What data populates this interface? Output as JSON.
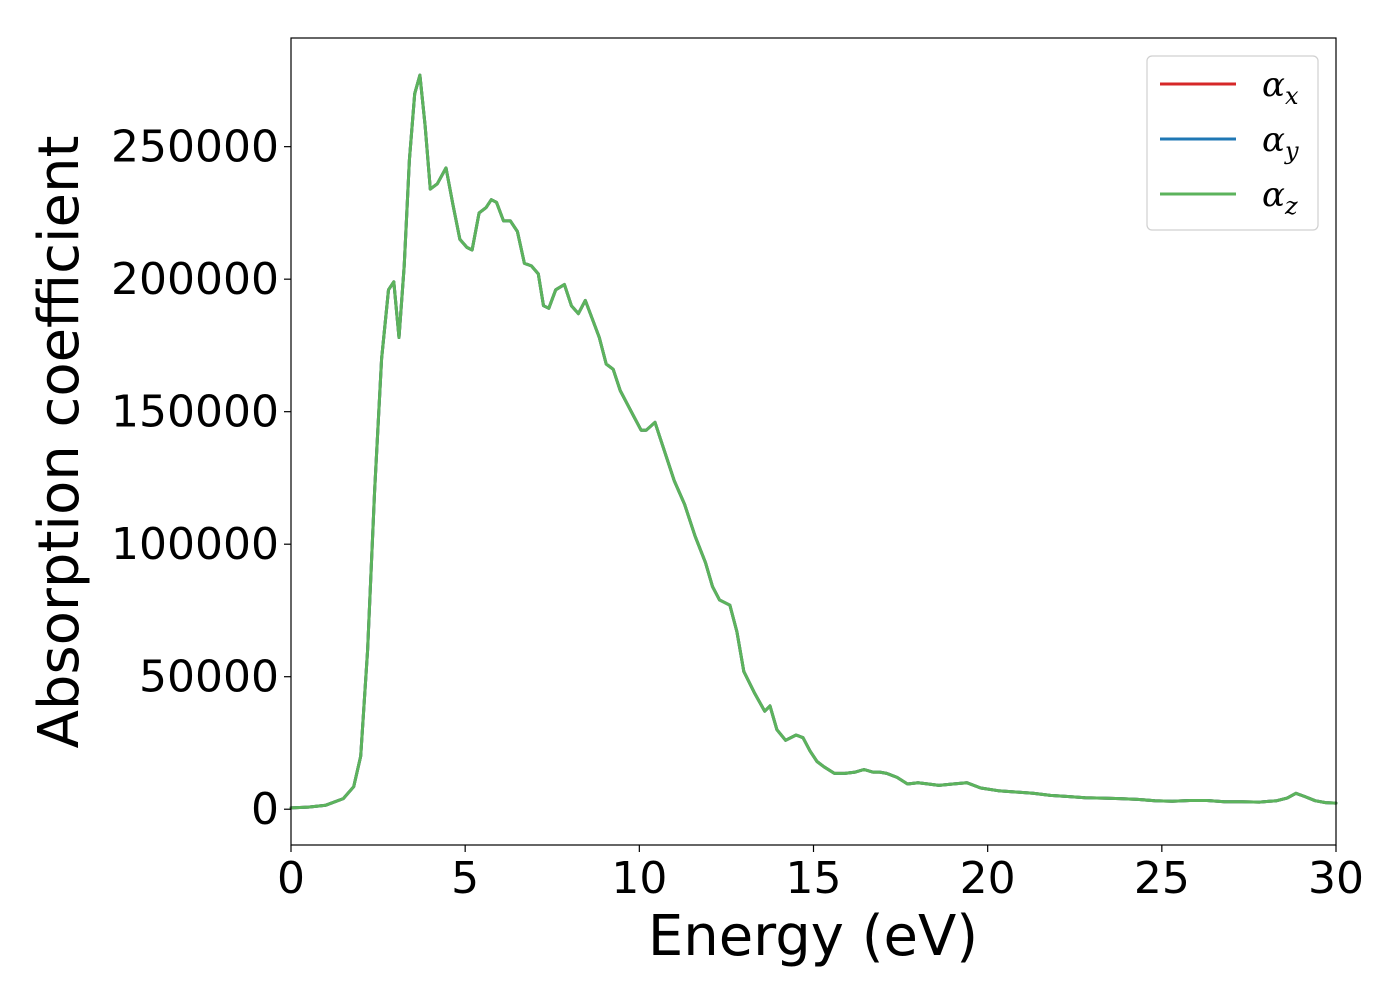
{
  "chart_data": {
    "type": "line",
    "title": "",
    "xlabel": "Energy (eV)",
    "ylabel": "Absorption coefficient",
    "xlim": [
      0,
      30
    ],
    "ylim": [
      -13500,
      291000
    ],
    "xticks": [
      0,
      5,
      10,
      15,
      20,
      25,
      30
    ],
    "yticks": [
      0,
      50000,
      100000,
      150000,
      200000,
      250000
    ],
    "grid": false,
    "legend_position": "top-right",
    "x": [
      0,
      0.5,
      1,
      1.5,
      1.8,
      2,
      2.2,
      2.4,
      2.6,
      2.8,
      2.95,
      3.1,
      3.25,
      3.4,
      3.55,
      3.7,
      3.85,
      4.0,
      4.2,
      4.45,
      4.65,
      4.85,
      5.05,
      5.2,
      5.4,
      5.6,
      5.75,
      5.9,
      6.1,
      6.3,
      6.5,
      6.7,
      6.9,
      7.1,
      7.25,
      7.4,
      7.6,
      7.85,
      8.05,
      8.25,
      8.45,
      8.65,
      8.85,
      9.05,
      9.25,
      9.45,
      9.65,
      9.85,
      10.05,
      10.2,
      10.45,
      10.6,
      10.8,
      11.0,
      11.3,
      11.6,
      11.9,
      12.1,
      12.3,
      12.6,
      12.8,
      13.0,
      13.3,
      13.6,
      13.75,
      13.95,
      14.2,
      14.5,
      14.7,
      14.9,
      15.1,
      15.3,
      15.6,
      15.9,
      16.2,
      16.45,
      16.7,
      16.9,
      17.1,
      17.4,
      17.7,
      18.0,
      18.3,
      18.6,
      19.0,
      19.4,
      19.8,
      20.3,
      20.8,
      21.3,
      21.8,
      22.3,
      22.8,
      23.3,
      23.8,
      24.3,
      24.8,
      25.3,
      25.8,
      26.3,
      26.8,
      27.3,
      27.8,
      28.3,
      28.6,
      28.85,
      29.1,
      29.4,
      29.7,
      30
    ],
    "series": [
      {
        "name": "αx",
        "color": "#d62728",
        "values": [
          500,
          800,
          1500,
          4000,
          8500,
          20000,
          60000,
          120000,
          170000,
          196000,
          199000,
          178000,
          205000,
          245000,
          270000,
          277000,
          258000,
          234000,
          236000,
          242000,
          228000,
          215000,
          212000,
          211000,
          225000,
          227000,
          230000,
          229000,
          222000,
          222000,
          218000,
          206000,
          205000,
          202000,
          190000,
          189000,
          196000,
          198000,
          190000,
          187000,
          192000,
          185000,
          178000,
          168000,
          166000,
          158000,
          153000,
          148000,
          143000,
          143000,
          146000,
          140000,
          132000,
          124000,
          115000,
          103000,
          93000,
          84000,
          79000,
          77000,
          67000,
          52000,
          44000,
          37000,
          39000,
          30000,
          26000,
          28000,
          27000,
          22000,
          18000,
          16000,
          13500,
          13500,
          14000,
          15000,
          14000,
          14000,
          13500,
          12000,
          9500,
          10000,
          9500,
          9000,
          9500,
          10000,
          8000,
          7000,
          6500,
          6000,
          5200,
          4800,
          4300,
          4200,
          4000,
          3700,
          3200,
          3000,
          3300,
          3300,
          2800,
          2800,
          2700,
          3200,
          4200,
          6000,
          4800,
          3200,
          2500,
          2300
        ]
      },
      {
        "name": "αy",
        "color": "#1f77b4",
        "values": [
          500,
          800,
          1500,
          4000,
          8500,
          20000,
          60000,
          120000,
          170000,
          196000,
          199000,
          178000,
          205000,
          245000,
          270000,
          277000,
          258000,
          234000,
          236000,
          242000,
          228000,
          215000,
          212000,
          211000,
          225000,
          227000,
          230000,
          229000,
          222000,
          222000,
          218000,
          206000,
          205000,
          202000,
          190000,
          189000,
          196000,
          198000,
          190000,
          187000,
          192000,
          185000,
          178000,
          168000,
          166000,
          158000,
          153000,
          148000,
          143000,
          143000,
          146000,
          140000,
          132000,
          124000,
          115000,
          103000,
          93000,
          84000,
          79000,
          77000,
          67000,
          52000,
          44000,
          37000,
          39000,
          30000,
          26000,
          28000,
          27000,
          22000,
          18000,
          16000,
          13500,
          13500,
          14000,
          15000,
          14000,
          14000,
          13500,
          12000,
          9500,
          10000,
          9500,
          9000,
          9500,
          10000,
          8000,
          7000,
          6500,
          6000,
          5200,
          4800,
          4300,
          4200,
          4000,
          3700,
          3200,
          3000,
          3300,
          3300,
          2800,
          2800,
          2700,
          3200,
          4200,
          6000,
          4800,
          3200,
          2500,
          2300
        ]
      },
      {
        "name": "αz",
        "color": "#5cb35c",
        "values": [
          500,
          800,
          1500,
          4000,
          8500,
          20000,
          60000,
          120000,
          170000,
          196000,
          199000,
          178000,
          205000,
          245000,
          270000,
          277000,
          258000,
          234000,
          236000,
          242000,
          228000,
          215000,
          212000,
          211000,
          225000,
          227000,
          230000,
          229000,
          222000,
          222000,
          218000,
          206000,
          205000,
          202000,
          190000,
          189000,
          196000,
          198000,
          190000,
          187000,
          192000,
          185000,
          178000,
          168000,
          166000,
          158000,
          153000,
          148000,
          143000,
          143000,
          146000,
          140000,
          132000,
          124000,
          115000,
          103000,
          93000,
          84000,
          79000,
          77000,
          67000,
          52000,
          44000,
          37000,
          39000,
          30000,
          26000,
          28000,
          27000,
          22000,
          18000,
          16000,
          13500,
          13500,
          14000,
          15000,
          14000,
          14000,
          13500,
          12000,
          9500,
          10000,
          9500,
          9000,
          9500,
          10000,
          8000,
          7000,
          6500,
          6000,
          5200,
          4800,
          4300,
          4200,
          4000,
          3700,
          3200,
          3000,
          3300,
          3300,
          2800,
          2800,
          2700,
          3200,
          4200,
          6000,
          4800,
          3200,
          2500,
          2300
        ]
      }
    ],
    "legend": [
      {
        "symbol": "α",
        "subscript": "x"
      },
      {
        "symbol": "α",
        "subscript": "y"
      },
      {
        "symbol": "α",
        "subscript": "z"
      }
    ]
  }
}
